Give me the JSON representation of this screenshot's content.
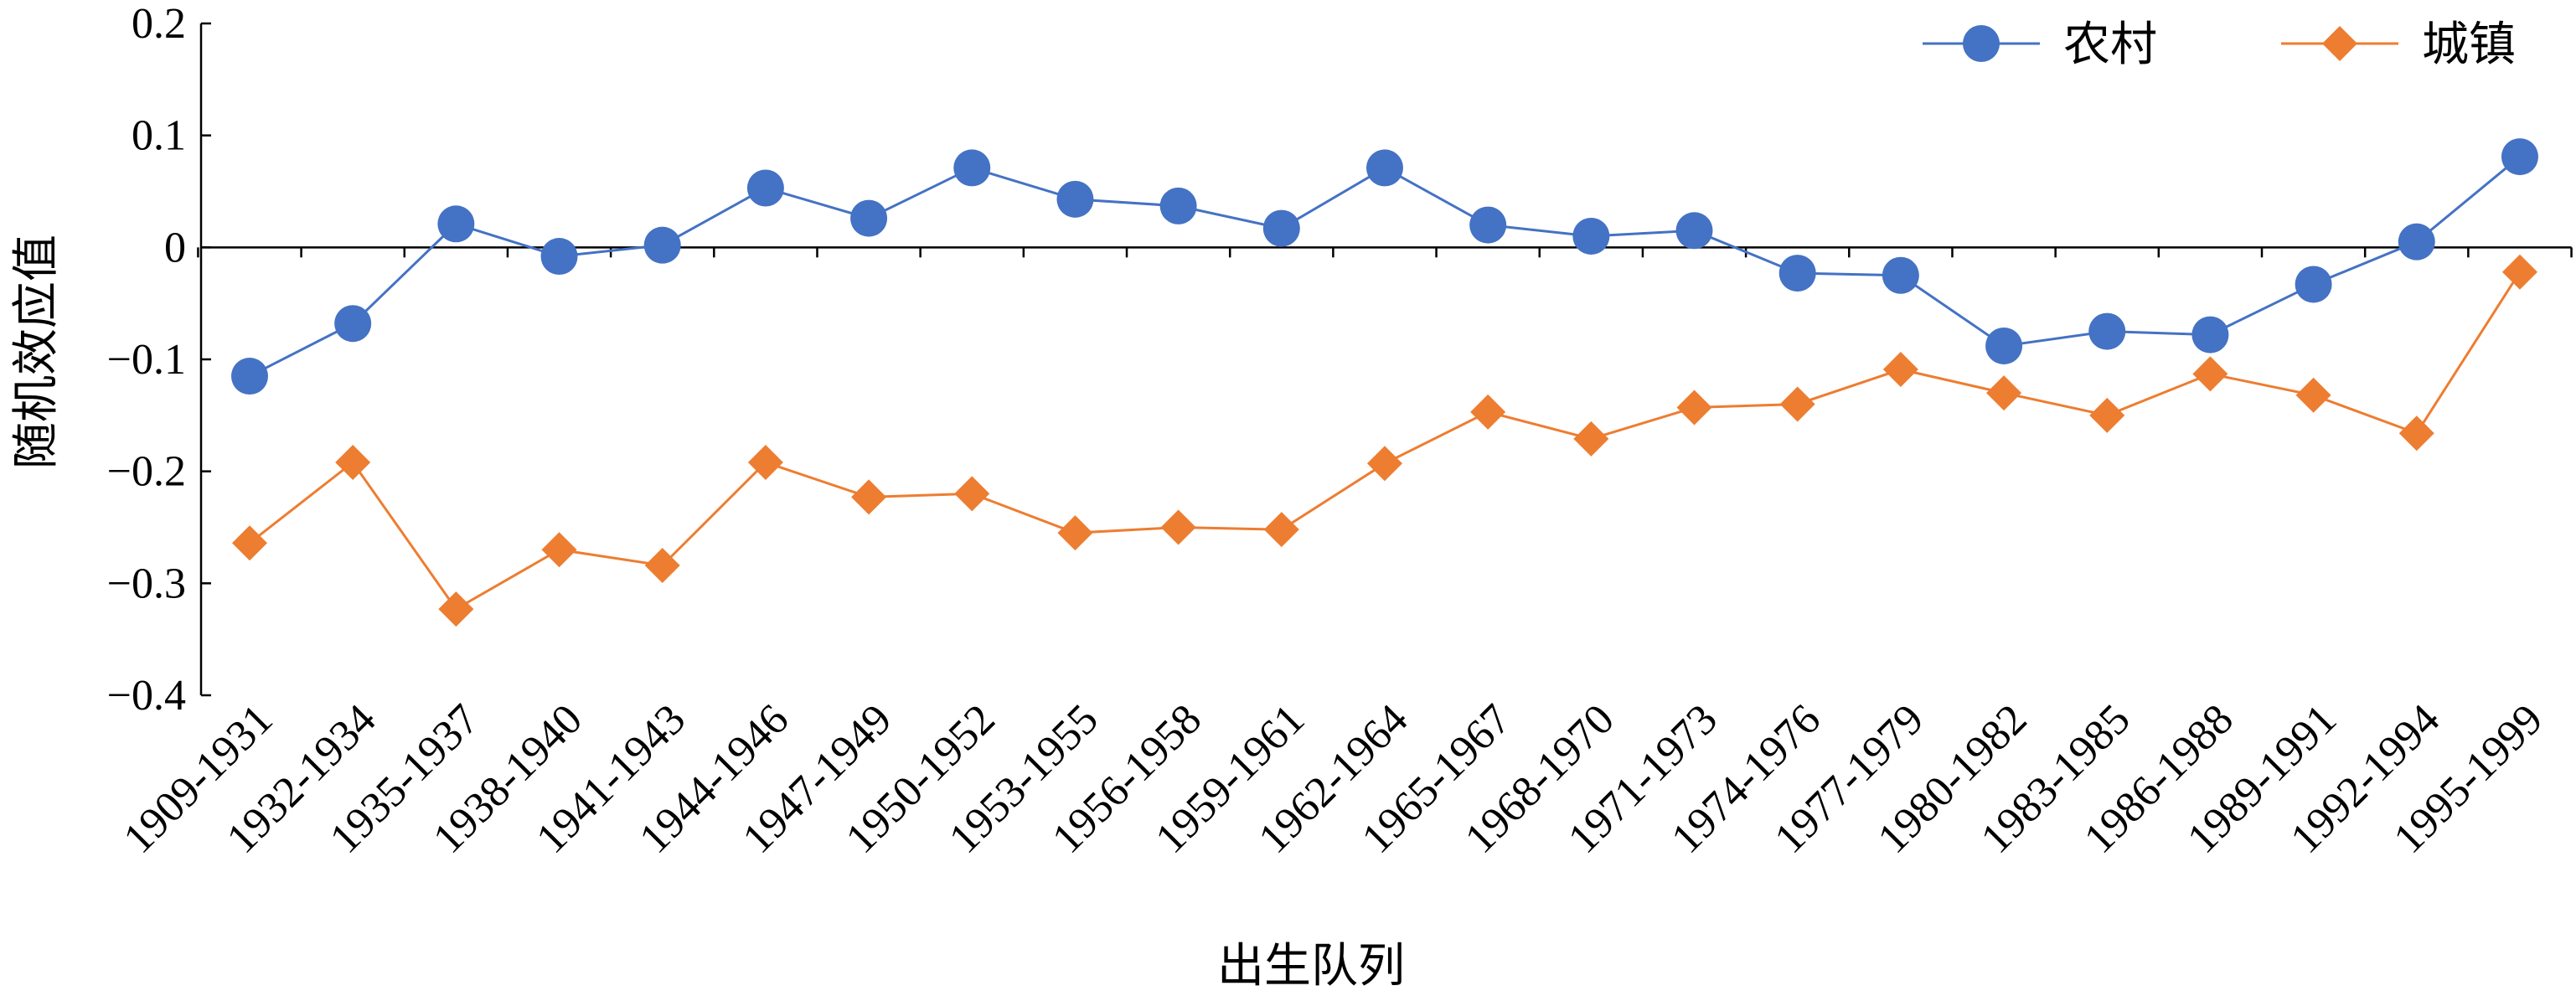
{
  "chart_data": {
    "type": "line",
    "title": "",
    "xlabel": "出生队列",
    "ylabel": "随机效应值",
    "ylim": [
      -0.4,
      0.2
    ],
    "ytick_values": [
      0.2,
      0.1,
      0,
      -0.1,
      -0.2,
      -0.3,
      -0.4
    ],
    "ytick_labels": [
      "0.2",
      "0.1",
      "0",
      "−0.1",
      "−0.2",
      "−0.3",
      "−0.4"
    ],
    "grid": false,
    "legend_position": "top-right",
    "categories": [
      "1909-1931",
      "1932-1934",
      "1935-1937",
      "1938-1940",
      "1941-1943",
      "1944-1946",
      "1947-1949",
      "1950-1952",
      "1953-1955",
      "1956-1958",
      "1959-1961",
      "1962-1964",
      "1965-1967",
      "1968-1970",
      "1971-1973",
      "1974-1976",
      "1977-1979",
      "1980-1982",
      "1983-1985",
      "1986-1988",
      "1989-1991",
      "1992-1994",
      "1995-1999"
    ],
    "series": [
      {
        "name": "农村",
        "marker": "circle",
        "color": "#4472C4",
        "values": [
          -0.115,
          -0.068,
          0.021,
          -0.008,
          0.002,
          0.053,
          0.026,
          0.071,
          0.043,
          0.037,
          0.017,
          0.071,
          0.02,
          0.01,
          0.015,
          -0.023,
          -0.025,
          -0.088,
          -0.075,
          -0.078,
          -0.033,
          0.005,
          0.081
        ]
      },
      {
        "name": "城镇",
        "marker": "diamond",
        "color": "#ED7D31",
        "values": [
          -0.264,
          -0.192,
          -0.323,
          -0.27,
          -0.284,
          -0.192,
          -0.223,
          -0.22,
          -0.255,
          -0.25,
          -0.252,
          -0.193,
          -0.147,
          -0.171,
          -0.143,
          -0.14,
          -0.109,
          -0.13,
          -0.15,
          -0.113,
          -0.132,
          -0.166,
          -0.022
        ]
      }
    ]
  }
}
